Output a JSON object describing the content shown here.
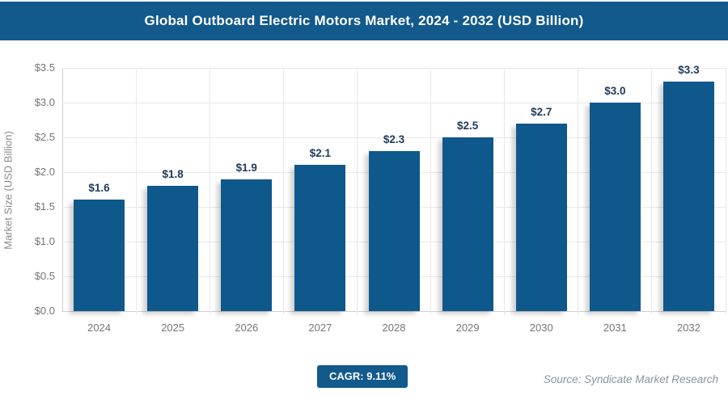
{
  "header": {
    "title": "Global Outboard Electric Motors Market, 2024 - 2032 (USD Billion)"
  },
  "chart_data": {
    "type": "bar",
    "title": "Global Outboard Electric Motors Market, 2024 - 2032 (USD Billion)",
    "categories": [
      "2024",
      "2025",
      "2026",
      "2027",
      "2028",
      "2029",
      "2030",
      "2031",
      "2032"
    ],
    "values": [
      1.6,
      1.8,
      1.9,
      2.1,
      2.3,
      2.5,
      2.7,
      3.0,
      3.3
    ],
    "bar_labels": [
      "$1.6",
      "$1.8",
      "$1.9",
      "$2.1",
      "$2.3",
      "$2.5",
      "$2.7",
      "$3.0",
      "$3.3"
    ],
    "xlabel": "",
    "ylabel": "Market Size (USD Billion)",
    "ylim": [
      0,
      3.5
    ],
    "ytick_values": [
      0,
      0.5,
      1.0,
      1.5,
      2.0,
      2.5,
      3.0,
      3.5
    ],
    "ytick_labels": [
      "$0.0",
      "$0.5",
      "$1.0",
      "$1.5",
      "$2.0",
      "$2.5",
      "$3.0",
      "$3.5"
    ],
    "grid": true,
    "legend": false
  },
  "footer": {
    "cagr_label": "CAGR: 9.11%",
    "source": "Source: Syndicate Market Research"
  },
  "colors": {
    "header_bg": "#12598C",
    "bar": "#0E588C",
    "bar_label": "#1F3A5C",
    "axis_text": "#757575",
    "grid": "#E8E8E8",
    "axis_line": "#CFCFCF",
    "badge_bg": "#12598C",
    "badge_text": "#FFFFFF",
    "source_text": "#8795A5"
  }
}
